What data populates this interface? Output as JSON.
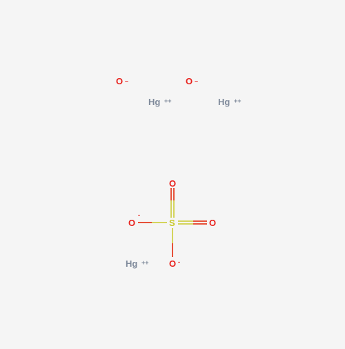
{
  "colors": {
    "background": "#f5f5f5",
    "oxygen": "#e8221d",
    "mercury": "#7f8a9b",
    "sulfur": "#c9c92a"
  },
  "ions": {
    "oxide_1": {
      "symbol": "O",
      "charge": "–"
    },
    "oxide_2": {
      "symbol": "O",
      "charge": "–"
    },
    "mercury_1": {
      "symbol": "Hg",
      "charge": "++"
    },
    "mercury_2": {
      "symbol": "Hg",
      "charge": "++"
    },
    "mercury_3": {
      "symbol": "Hg",
      "charge": "++"
    }
  },
  "sulfate": {
    "sulfur": {
      "symbol": "S"
    },
    "oxygen_top": {
      "symbol": "O"
    },
    "oxygen_right": {
      "symbol": "O"
    },
    "oxygen_left": {
      "symbol": "O",
      "charge": "-"
    },
    "oxygen_bottom": {
      "symbol": "O",
      "charge": "-"
    }
  }
}
